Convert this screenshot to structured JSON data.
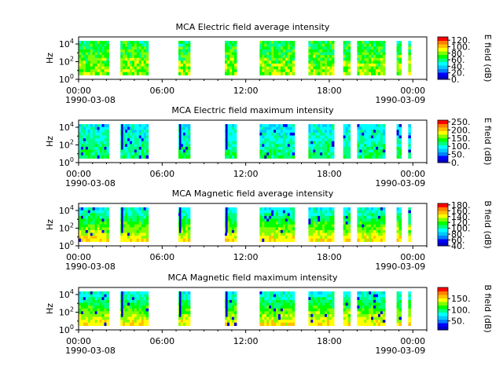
{
  "chart_data": [
    {
      "type": "heatmap",
      "title": "MCA  Electric field average intensity",
      "ylabel": "Hz",
      "y_scale": "log",
      "ylim_exp": [
        0,
        4.8
      ],
      "y_ticks": [
        {
          "exp": 0,
          "base": "10",
          "sup": "0"
        },
        {
          "exp": 2,
          "base": "10",
          "sup": "2"
        },
        {
          "exp": 4,
          "base": "10",
          "sup": "4"
        }
      ],
      "x_ticks": [
        "00:00",
        "06:00",
        "12:00",
        "18:00",
        "00:00"
      ],
      "x_dates": [
        "1990-03-08",
        "1990-03-09"
      ],
      "xlim": [
        "1990-03-08 00:00",
        "1990-03-09 01:00"
      ],
      "colorbar": {
        "label": "E field (dB)",
        "ticks": [
          "0.",
          "20.",
          "40.",
          "60.",
          "80.",
          "100.",
          "120."
        ],
        "range": [
          0,
          130
        ]
      },
      "data_gaps_only_shown": true,
      "segments": [
        [
          "00:00",
          "02:10"
        ],
        [
          "03:00",
          "05:00"
        ],
        [
          "07:10",
          "08:00"
        ],
        [
          "10:30",
          "11:20"
        ],
        [
          "13:00",
          "15:30"
        ],
        [
          "16:30",
          "18:20"
        ],
        [
          "19:00",
          "19:30"
        ],
        [
          "20:00",
          "22:00"
        ],
        [
          "22:50",
          "23:10"
        ],
        [
          "23:40",
          "23:50"
        ]
      ],
      "baseline": "green"
    },
    {
      "type": "heatmap",
      "title": "MCA  Electric field maximum intensity",
      "ylabel": "Hz",
      "y_scale": "log",
      "ylim_exp": [
        0,
        4.8
      ],
      "y_ticks": [
        {
          "exp": 0,
          "base": "10",
          "sup": "0"
        },
        {
          "exp": 2,
          "base": "10",
          "sup": "2"
        },
        {
          "exp": 4,
          "base": "10",
          "sup": "4"
        }
      ],
      "x_ticks": [
        "00:00",
        "06:00",
        "12:00",
        "18:00",
        "00:00"
      ],
      "x_dates": [
        "1990-03-08",
        "1990-03-09"
      ],
      "xlim": [
        "1990-03-08 00:00",
        "1990-03-09 01:00"
      ],
      "colorbar": {
        "label": "E field (dB)",
        "ticks": [
          "0.",
          "50.",
          "100.",
          "150.",
          "200.",
          "250."
        ],
        "range": [
          0,
          260
        ]
      },
      "segments": [
        [
          "00:00",
          "02:10"
        ],
        [
          "03:00",
          "05:00"
        ],
        [
          "07:10",
          "08:00"
        ],
        [
          "10:30",
          "11:20"
        ],
        [
          "13:00",
          "15:30"
        ],
        [
          "16:30",
          "18:20"
        ],
        [
          "19:00",
          "19:30"
        ],
        [
          "20:00",
          "22:00"
        ],
        [
          "22:50",
          "23:10"
        ],
        [
          "23:40",
          "23:50"
        ]
      ],
      "baseline": "cyan"
    },
    {
      "type": "heatmap",
      "title": "MCA  Magnetic field average intensity",
      "ylabel": "Hz",
      "y_scale": "log",
      "ylim_exp": [
        0,
        4.8
      ],
      "y_ticks": [
        {
          "exp": 0,
          "base": "10",
          "sup": "0"
        },
        {
          "exp": 2,
          "base": "10",
          "sup": "2"
        },
        {
          "exp": 4,
          "base": "10",
          "sup": "4"
        }
      ],
      "x_ticks": [
        "00:00",
        "06:00",
        "12:00",
        "18:00",
        "00:00"
      ],
      "x_dates": [
        "1990-03-08",
        "1990-03-09"
      ],
      "xlim": [
        "1990-03-08 00:00",
        "1990-03-09 01:00"
      ],
      "colorbar": {
        "label": "B field (dB)",
        "ticks": [
          "40.",
          "60.",
          "80.",
          "100.",
          "120.",
          "140.",
          "160.",
          "180."
        ],
        "range": [
          40,
          185
        ]
      },
      "segments": [
        [
          "00:00",
          "02:10"
        ],
        [
          "03:00",
          "05:00"
        ],
        [
          "07:10",
          "08:00"
        ],
        [
          "10:30",
          "11:20"
        ],
        [
          "13:00",
          "15:30"
        ],
        [
          "16:30",
          "18:20"
        ],
        [
          "19:00",
          "19:30"
        ],
        [
          "20:00",
          "22:00"
        ],
        [
          "22:50",
          "23:10"
        ],
        [
          "23:40",
          "23:50"
        ]
      ],
      "baseline": "layered"
    },
    {
      "type": "heatmap",
      "title": "MCA  Magnetic field maximum intensity",
      "ylabel": "Hz",
      "y_scale": "log",
      "ylim_exp": [
        0,
        4.8
      ],
      "y_ticks": [
        {
          "exp": 0,
          "base": "10",
          "sup": "0"
        },
        {
          "exp": 2,
          "base": "10",
          "sup": "2"
        },
        {
          "exp": 4,
          "base": "10",
          "sup": "4"
        }
      ],
      "x_ticks": [
        "00:00",
        "06:00",
        "12:00",
        "18:00",
        "00:00"
      ],
      "x_dates": [
        "1990-03-08",
        "1990-03-09"
      ],
      "xlim": [
        "1990-03-08 00:00",
        "1990-03-09 01:00"
      ],
      "colorbar": {
        "label": "B field (dB)",
        "ticks": [
          "50.",
          "100.",
          "150."
        ],
        "range": [
          10,
          200
        ]
      },
      "segments": [
        [
          "00:00",
          "02:10"
        ],
        [
          "03:00",
          "05:00"
        ],
        [
          "07:10",
          "08:00"
        ],
        [
          "10:30",
          "11:20"
        ],
        [
          "13:00",
          "15:30"
        ],
        [
          "16:30",
          "18:20"
        ],
        [
          "19:00",
          "19:30"
        ],
        [
          "20:00",
          "22:00"
        ],
        [
          "22:50",
          "23:10"
        ],
        [
          "23:40",
          "23:50"
        ]
      ],
      "baseline": "layered"
    }
  ],
  "colormap": [
    "#0000c8",
    "#0000ff",
    "#0080ff",
    "#00c8ff",
    "#00ffff",
    "#00ff80",
    "#00ff00",
    "#80ff00",
    "#ffff00",
    "#ffc000",
    "#ff8000",
    "#ff0000"
  ]
}
